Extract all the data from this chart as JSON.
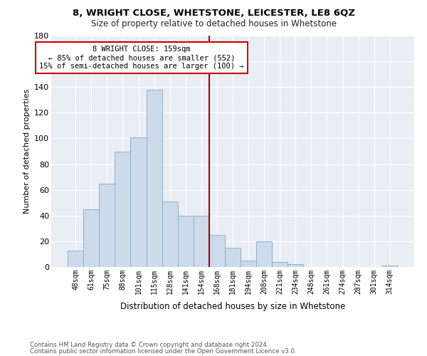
{
  "title1": "8, WRIGHT CLOSE, WHETSTONE, LEICESTER, LE8 6QZ",
  "title2": "Size of property relative to detached houses in Whetstone",
  "xlabel": "Distribution of detached houses by size in Whetstone",
  "ylabel": "Number of detached properties",
  "footer1": "Contains HM Land Registry data © Crown copyright and database right 2024.",
  "footer2": "Contains public sector information licensed under the Open Government Licence v3.0.",
  "bar_labels": [
    "48sqm",
    "61sqm",
    "75sqm",
    "88sqm",
    "101sqm",
    "115sqm",
    "128sqm",
    "141sqm",
    "154sqm",
    "168sqm",
    "181sqm",
    "194sqm",
    "208sqm",
    "221sqm",
    "234sqm",
    "248sqm",
    "261sqm",
    "274sqm",
    "287sqm",
    "301sqm",
    "314sqm"
  ],
  "bar_values": [
    13,
    45,
    65,
    90,
    101,
    138,
    51,
    40,
    40,
    25,
    15,
    5,
    20,
    4,
    2,
    0,
    0,
    0,
    0,
    0,
    1
  ],
  "bar_color": "#ccdaea",
  "bar_edgecolor": "#8ab0cc",
  "vline_x": 8.5,
  "annotation_text_line1": "8 WRIGHT CLOSE: 159sqm",
  "annotation_text_line2": "← 85% of detached houses are smaller (552)",
  "annotation_text_line3": "15% of semi-detached houses are larger (100) →",
  "annotation_box_color": "#ffffff",
  "annotation_box_edgecolor": "#cc0000",
  "vline_color": "#aa0000",
  "ylim": [
    0,
    180
  ],
  "yticks": [
    0,
    20,
    40,
    60,
    80,
    100,
    120,
    140,
    160,
    180
  ],
  "background_color": "#ffffff",
  "plot_bg_color": "#e8eef4",
  "grid_color": "#ffffff"
}
